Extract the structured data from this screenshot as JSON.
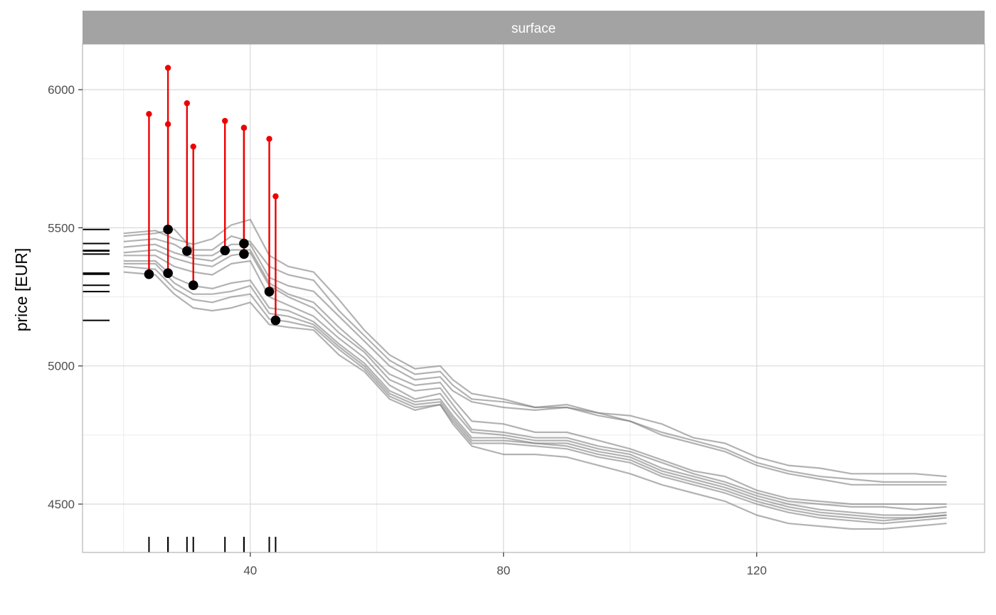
{
  "chart_data": {
    "type": "line",
    "facet_label": "surface",
    "title": "",
    "xlabel": "",
    "ylabel": "price [EUR]",
    "xlim": [
      13.5,
      156
    ],
    "ylim": [
      4325,
      6165
    ],
    "x_ticks": [
      40,
      80,
      120
    ],
    "x_tick_labels": [
      "40",
      "80",
      "120"
    ],
    "y_ticks": [
      4500,
      5000,
      5500,
      6000
    ],
    "y_tick_labels": [
      "4500",
      "5000",
      "5500",
      "6000"
    ],
    "grid": true,
    "legend": "none",
    "colors": {
      "profile_line": "#7f7f7f",
      "residual": "#ee0000",
      "observation": "#000000",
      "strip": "#a3a3a3",
      "grid_major": "#d9d9d9",
      "grid_minor": "#ebebeb",
      "panel_border": "#b3b3b3"
    },
    "profile_x": [
      20,
      25,
      28,
      31,
      34,
      37,
      40,
      43,
      46,
      50,
      54,
      58,
      62,
      66,
      70,
      72,
      75,
      80,
      85,
      90,
      95,
      100,
      105,
      110,
      115,
      120,
      125,
      130,
      135,
      140,
      145,
      150
    ],
    "profiles": [
      {
        "values": [
          5480,
          5490,
          5460,
          5440,
          5460,
          5510,
          5530,
          5400,
          5360,
          5340,
          5240,
          5130,
          5040,
          4990,
          5000,
          4950,
          4900,
          4880,
          4850,
          4860,
          4830,
          4820,
          4790,
          4740,
          4720,
          4670,
          4640,
          4630,
          4610,
          4610,
          4610,
          4600
        ]
      },
      {
        "values": [
          5470,
          5480,
          5495,
          5420,
          5420,
          5470,
          5450,
          5360,
          5330,
          5310,
          5200,
          5110,
          5020,
          4970,
          4980,
          4930,
          4880,
          4870,
          4850,
          4850,
          4830,
          4800,
          4760,
          4730,
          4700,
          4650,
          4620,
          4600,
          4590,
          4580,
          4580,
          4580
        ]
      },
      {
        "values": [
          5450,
          5460,
          5440,
          5400,
          5400,
          5440,
          5440,
          5320,
          5290,
          5270,
          5180,
          5090,
          5000,
          4950,
          4960,
          4910,
          4870,
          4850,
          4840,
          4850,
          4820,
          4800,
          4750,
          4720,
          4690,
          4640,
          4610,
          4590,
          4570,
          4570,
          4570,
          4570
        ]
      },
      {
        "values": [
          5430,
          5440,
          5410,
          5390,
          5380,
          5420,
          5420,
          5300,
          5260,
          5230,
          5140,
          5060,
          4970,
          4930,
          4940,
          4880,
          4800,
          4790,
          4760,
          4760,
          4730,
          4700,
          4660,
          4620,
          4600,
          4550,
          4520,
          4510,
          4500,
          4500,
          4500,
          4500
        ]
      },
      {
        "values": [
          5410,
          5420,
          5390,
          5370,
          5360,
          5400,
          5410,
          5290,
          5250,
          5210,
          5120,
          5050,
          4950,
          4910,
          4920,
          4860,
          4770,
          4760,
          4740,
          4740,
          4710,
          4690,
          4650,
          4610,
          4580,
          4540,
          4510,
          4500,
          4490,
          4490,
          4480,
          4490
        ]
      },
      {
        "values": [
          5400,
          5400,
          5360,
          5340,
          5330,
          5370,
          5380,
          5250,
          5220,
          5180,
          5100,
          5030,
          4930,
          4880,
          4900,
          4840,
          4760,
          4750,
          4730,
          4730,
          4700,
          4680,
          4630,
          4600,
          4570,
          4530,
          4500,
          4480,
          4470,
          4460,
          4460,
          4470
        ]
      },
      {
        "values": [
          5380,
          5380,
          5320,
          5290,
          5280,
          5300,
          5310,
          5210,
          5200,
          5160,
          5080,
          5010,
          4910,
          4870,
          4880,
          4820,
          4740,
          4740,
          4720,
          4720,
          4690,
          4670,
          4620,
          4590,
          4560,
          4520,
          4490,
          4470,
          4460,
          4450,
          4450,
          4460
        ]
      },
      {
        "values": [
          5370,
          5370,
          5300,
          5260,
          5260,
          5270,
          5290,
          5190,
          5180,
          5150,
          5070,
          5000,
          4900,
          4860,
          4870,
          4810,
          4730,
          4730,
          4720,
          4710,
          4680,
          4660,
          4610,
          4580,
          4550,
          4510,
          4480,
          4460,
          4450,
          4440,
          4450,
          4460
        ]
      },
      {
        "values": [
          5360,
          5350,
          5280,
          5240,
          5230,
          5250,
          5260,
          5170,
          5160,
          5140,
          5060,
          4990,
          4890,
          4850,
          4860,
          4800,
          4720,
          4720,
          4710,
          4700,
          4670,
          4650,
          4600,
          4570,
          4540,
          4500,
          4470,
          4450,
          4440,
          4430,
          4440,
          4450
        ]
      },
      {
        "values": [
          5340,
          5330,
          5260,
          5210,
          5200,
          5210,
          5230,
          5150,
          5140,
          5130,
          5040,
          4980,
          4880,
          4840,
          4860,
          4790,
          4710,
          4680,
          4680,
          4670,
          4640,
          4610,
          4570,
          4540,
          4510,
          4460,
          4430,
          4420,
          4410,
          4410,
          4420,
          4430
        ]
      }
    ],
    "observations": [
      {
        "x": 24,
        "y_predicted": 5332,
        "y_observed": 5912
      },
      {
        "x": 27,
        "y_predicted": 5494,
        "y_observed": 6079
      },
      {
        "x": 27,
        "y_predicted": 5336,
        "y_observed": 5875
      },
      {
        "x": 30,
        "y_predicted": 5416,
        "y_observed": 5951
      },
      {
        "x": 31,
        "y_predicted": 5292,
        "y_observed": 5794
      },
      {
        "x": 36,
        "y_predicted": 5418,
        "y_observed": 5887
      },
      {
        "x": 39,
        "y_predicted": 5443,
        "y_observed": 5862
      },
      {
        "x": 39,
        "y_predicted": 5405,
        "y_observed": 5862
      },
      {
        "x": 43,
        "y_predicted": 5269,
        "y_observed": 5822
      },
      {
        "x": 44,
        "y_predicted": 5165,
        "y_observed": 5614
      }
    ]
  }
}
